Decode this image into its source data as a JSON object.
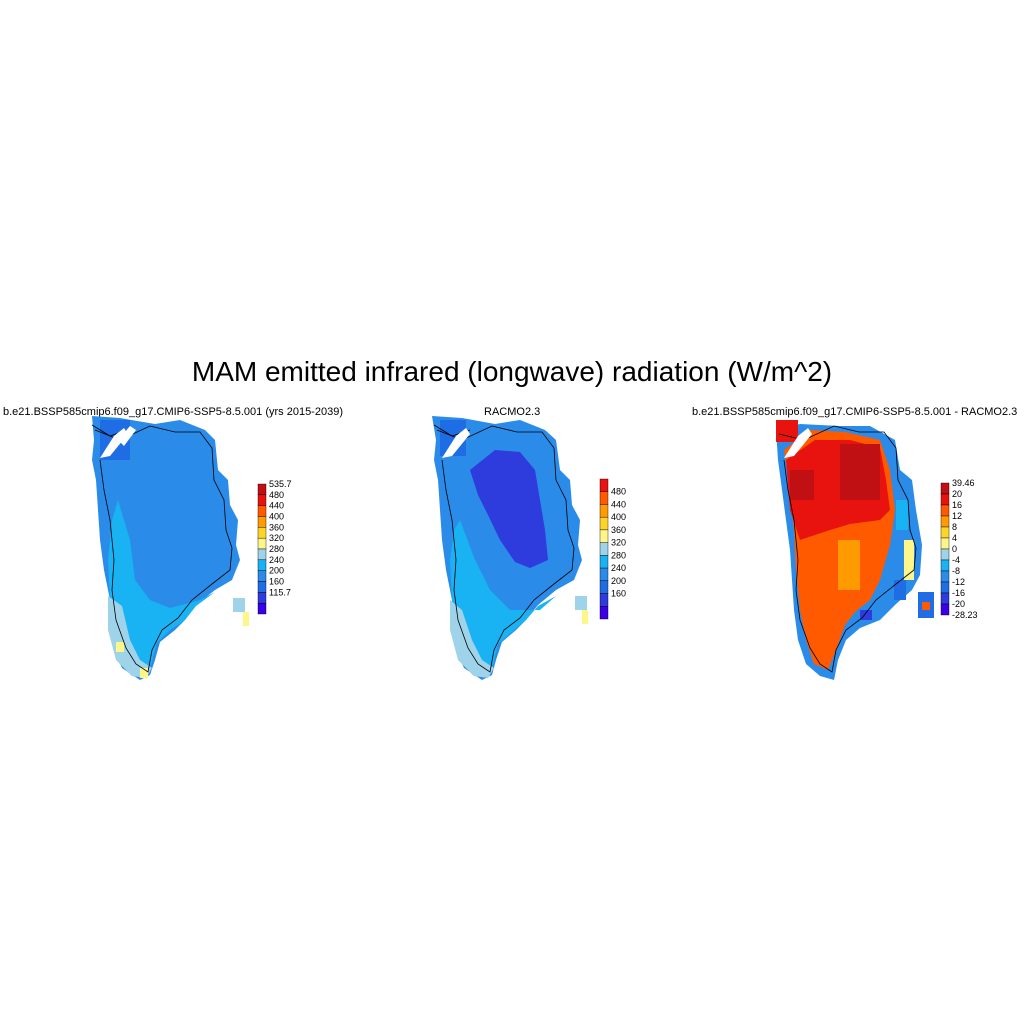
{
  "title": "MAM emitted infrared (longwave) radiation (W/m^2)",
  "colors": {
    "cb1": [
      "#3a00e6",
      "#2e3bdd",
      "#1f6de4",
      "#2b8be8",
      "#19b2f2",
      "#9fd3ea",
      "#fff68a",
      "#ffd42a",
      "#ff9a00",
      "#ff5a00",
      "#e8120e",
      "#c01014"
    ],
    "cb3": [
      "#3a00e6",
      "#2e3bdd",
      "#1f6de4",
      "#2b8be8",
      "#19b2f2",
      "#9fd3ea",
      "#fff68a",
      "#ffd42a",
      "#ff9a00",
      "#ff5a00",
      "#e8120e",
      "#c01014"
    ]
  },
  "panels": [
    {
      "title": "b.e21.BSSP585cmip6.f09_g17.CMIP6-SSP5-8.5.001 (yrs 2015-2039)",
      "colorbar_labels": [
        "535.7",
        "480",
        "440",
        "400",
        "360",
        "320",
        "280",
        "240",
        "200",
        "160",
        "115.7"
      ]
    },
    {
      "title": "RACMO2.3",
      "colorbar_labels": [
        "480",
        "440",
        "400",
        "360",
        "320",
        "280",
        "240",
        "200",
        "160"
      ]
    },
    {
      "title": "b.e21.BSSP585cmip6.f09_g17.CMIP6-SSP5-8.5.001 - RACMO2.3",
      "colorbar_labels": [
        "39.46",
        "20",
        "16",
        "12",
        "8",
        "4",
        "0",
        "-4",
        "-8",
        "-12",
        "-16",
        "-20",
        "-28.23"
      ]
    }
  ]
}
